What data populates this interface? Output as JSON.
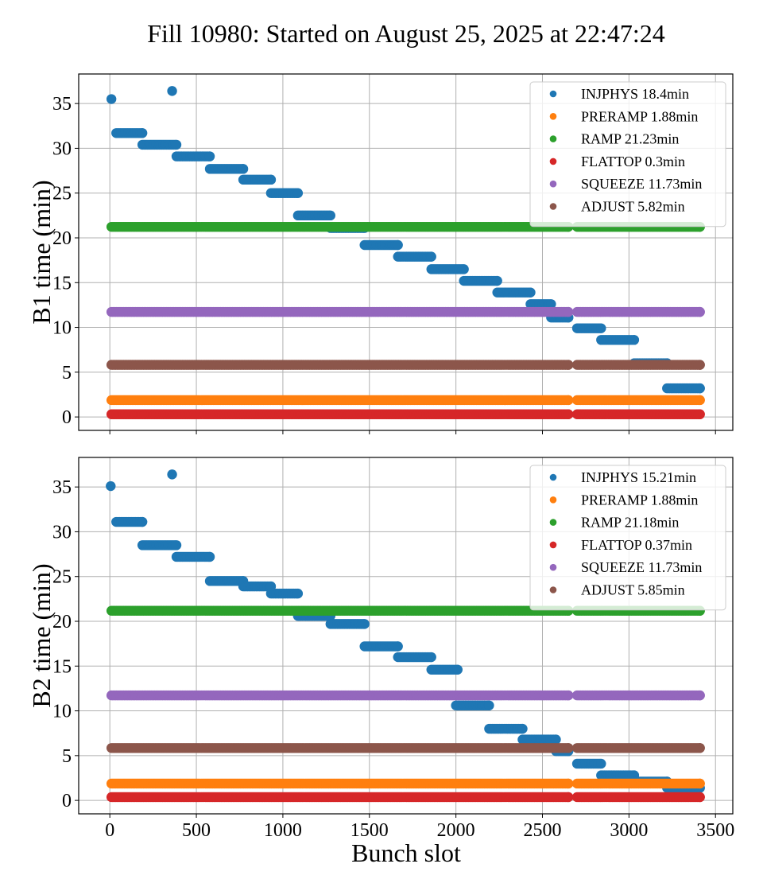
{
  "chart_data": {
    "type": "scatter",
    "title": "Fill 10980: Started on August 25, 2025 at 22:47:24",
    "xlabel": "Bunch slot",
    "xlim": [
      -180,
      3600
    ],
    "xticks": [
      0,
      500,
      1000,
      1500,
      2000,
      2500,
      3000,
      3500
    ],
    "grid": true,
    "block_boundaries": [
      37,
      188,
      385,
      578,
      771,
      931,
      1087,
      1275,
      1472,
      1665,
      1858,
      2046,
      2239,
      2431,
      2550,
      2587,
      2739,
      2927,
      3119,
      3312
    ],
    "subplots": [
      {
        "id": "b1",
        "ylabel": "B1 time (min)",
        "ylim": [
          -1.5,
          38.3
        ],
        "yticks": [
          0,
          5,
          10,
          15,
          20,
          25,
          30,
          35
        ],
        "legend_position": "top-right",
        "series": [
          {
            "name": "INJPHYS",
            "legend": "INJPHYS 18.4min",
            "color": "#1f77b4",
            "segments": [
              {
                "x": [
                  9,
                  9
                ],
                "y": 35.5
              },
              {
                "x": [
                  360,
                  360
                ],
                "y": 36.4
              },
              {
                "x": [
                  37,
                  188
                ],
                "y": 31.7
              },
              {
                "x": [
                  188,
                  385
                ],
                "y": 30.4
              },
              {
                "x": [
                  385,
                  578
                ],
                "y": 29.1
              },
              {
                "x": [
                  578,
                  771
                ],
                "y": 27.7
              },
              {
                "x": [
                  771,
                  931
                ],
                "y": 26.5
              },
              {
                "x": [
                  931,
                  1087
                ],
                "y": 25.0
              },
              {
                "x": [
                  1087,
                  1275
                ],
                "y": 22.5
              },
              {
                "x": [
                  1275,
                  1472
                ],
                "y": 21.1
              },
              {
                "x": [
                  1472,
                  1665
                ],
                "y": 19.2
              },
              {
                "x": [
                  1665,
                  1858
                ],
                "y": 17.9
              },
              {
                "x": [
                  1858,
                  2046
                ],
                "y": 16.5
              },
              {
                "x": [
                  2046,
                  2239
                ],
                "y": 15.2
              },
              {
                "x": [
                  2239,
                  2431
                ],
                "y": 13.9
              },
              {
                "x": [
                  2431,
                  2550
                ],
                "y": 12.6
              },
              {
                "x": [
                  2550,
                  2650
                ],
                "y": 11.1
              },
              {
                "x": [
                  2700,
                  2839
                ],
                "y": 9.9
              },
              {
                "x": [
                  2839,
                  3030
                ],
                "y": 8.6
              },
              {
                "x": [
                  3030,
                  3220
                ],
                "y": 6.0
              },
              {
                "x": [
                  3220,
                  3410
                ],
                "y": 3.2
              }
            ]
          },
          {
            "name": "PRERAMP",
            "legend": "PRERAMP 1.88min",
            "color": "#ff7f0e",
            "value": 1.88
          },
          {
            "name": "RAMP",
            "legend": "RAMP 21.23min",
            "color": "#2ca02c",
            "value": 21.23
          },
          {
            "name": "FLATTOP",
            "legend": "FLATTOP 0.3min",
            "color": "#d62728",
            "value": 0.3
          },
          {
            "name": "SQUEEZE",
            "legend": "SQUEEZE 11.73min",
            "color": "#9467bd",
            "value": 11.73
          },
          {
            "name": "ADJUST",
            "legend": "ADJUST 5.82min",
            "color": "#8c564b",
            "value": 5.82
          }
        ]
      },
      {
        "id": "b2",
        "ylabel": "B2 time (min)",
        "ylim": [
          -1.5,
          38.3
        ],
        "yticks": [
          0,
          5,
          10,
          15,
          20,
          25,
          30,
          35
        ],
        "legend_position": "top-right",
        "series": [
          {
            "name": "INJPHYS",
            "legend": "INJPHYS 15.21min",
            "color": "#1f77b4",
            "segments": [
              {
                "x": [
                  5,
                  5
                ],
                "y": 35.1
              },
              {
                "x": [
                  360,
                  360
                ],
                "y": 36.4
              },
              {
                "x": [
                  37,
                  188
                ],
                "y": 31.1
              },
              {
                "x": [
                  188,
                  385
                ],
                "y": 28.5
              },
              {
                "x": [
                  385,
                  578
                ],
                "y": 27.2
              },
              {
                "x": [
                  578,
                  771
                ],
                "y": 24.5
              },
              {
                "x": [
                  771,
                  931
                ],
                "y": 23.9
              },
              {
                "x": [
                  931,
                  1087
                ],
                "y": 23.1
              },
              {
                "x": [
                  1087,
                  1275
                ],
                "y": 20.6
              },
              {
                "x": [
                  1275,
                  1472
                ],
                "y": 19.7
              },
              {
                "x": [
                  1472,
                  1665
                ],
                "y": 17.2
              },
              {
                "x": [
                  1665,
                  1858
                ],
                "y": 16.0
              },
              {
                "x": [
                  1858,
                  2010
                ],
                "y": 14.6
              },
              {
                "x": [
                  2000,
                  2192
                ],
                "y": 10.6
              },
              {
                "x": [
                  2192,
                  2385
                ],
                "y": 8.0
              },
              {
                "x": [
                  2385,
                  2578
                ],
                "y": 6.8
              },
              {
                "x": [
                  2578,
                  2650
                ],
                "y": 5.5
              },
              {
                "x": [
                  2700,
                  2839
                ],
                "y": 4.1
              },
              {
                "x": [
                  2839,
                  3030
                ],
                "y": 2.8
              },
              {
                "x": [
                  3030,
                  3220
                ],
                "y": 2.1
              },
              {
                "x": [
                  3220,
                  3410
                ],
                "y": 1.4
              }
            ]
          },
          {
            "name": "PRERAMP",
            "legend": "PRERAMP 1.88min",
            "color": "#ff7f0e",
            "value": 1.88
          },
          {
            "name": "RAMP",
            "legend": "RAMP 21.18min",
            "color": "#2ca02c",
            "value": 21.18
          },
          {
            "name": "FLATTOP",
            "legend": "FLATTOP 0.37min",
            "color": "#d62728",
            "value": 0.37
          },
          {
            "name": "SQUEEZE",
            "legend": "SQUEEZE 11.73min",
            "color": "#9467bd",
            "value": 11.73
          },
          {
            "name": "ADJUST",
            "legend": "ADJUST 5.85min",
            "color": "#8c564b",
            "value": 5.85
          }
        ]
      }
    ],
    "constant_series_ranges": [
      [
        9,
        2650
      ],
      [
        2700,
        3410
      ]
    ]
  }
}
